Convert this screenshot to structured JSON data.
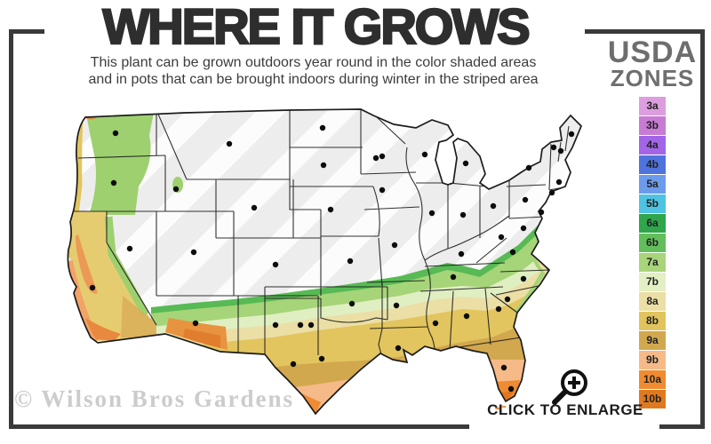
{
  "header": {
    "title": "WHERE IT GROWS",
    "subtitle_line1": "This plant can be grown outdoors year round in the color shaded areas",
    "subtitle_line2": "and in pots that can be brought indoors during winter in the striped area"
  },
  "legend": {
    "title_line1": "USDA",
    "title_line2": "ZONES",
    "zones": [
      {
        "label": "3a",
        "color": "#DC9EDE"
      },
      {
        "label": "3b",
        "color": "#C77BD3"
      },
      {
        "label": "4a",
        "color": "#A265E6"
      },
      {
        "label": "4b",
        "color": "#4F73DD"
      },
      {
        "label": "5a",
        "color": "#6C9BEC"
      },
      {
        "label": "5b",
        "color": "#4FC3E2"
      },
      {
        "label": "6a",
        "color": "#2FA64B"
      },
      {
        "label": "6b",
        "color": "#62BE5B"
      },
      {
        "label": "7a",
        "color": "#A8D47A"
      },
      {
        "label": "7b",
        "color": "#E3F0C4"
      },
      {
        "label": "8a",
        "color": "#EBDFA6"
      },
      {
        "label": "8b",
        "color": "#E1C45E"
      },
      {
        "label": "9a",
        "color": "#D2A84E"
      },
      {
        "label": "9b",
        "color": "#F6BA88"
      },
      {
        "label": "10a",
        "color": "#F08C2F"
      },
      {
        "label": "10b",
        "color": "#DF7A20"
      }
    ]
  },
  "map": {
    "watermark": "© Wilson Bros Gardens",
    "magnifier_icon": "zoom-in-magnifier",
    "enlarge_label": "CLICK TO ENLARGE"
  },
  "colors": {
    "frame": "#3a3a3a",
    "title_text": "#2e2e2e",
    "legend_title_text": "#6e6e6e",
    "watermark_text": "#cccccc",
    "unshaded_region": "#ededed"
  }
}
